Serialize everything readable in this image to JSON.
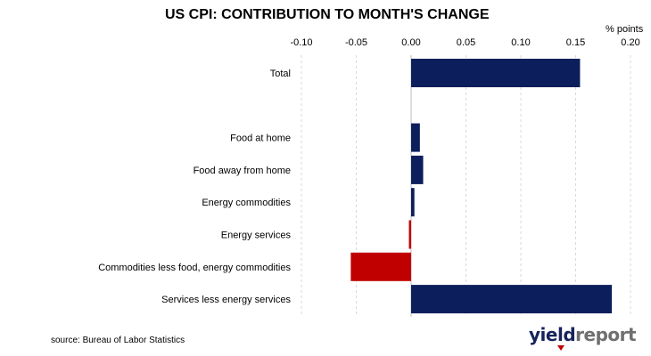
{
  "brand": {
    "part_a": "yield",
    "part_b": "report"
  },
  "colors": {
    "positive": "#0c1f5c",
    "negative": "#c00000",
    "gridline": "#d9d9d9",
    "axis": "#bfbfbf"
  },
  "chart_data": {
    "type": "bar",
    "orientation": "horizontal",
    "title": "US CPI: CONTRIBUTION TO MONTH'S CHANGE",
    "unit_label": "% points",
    "source": "source: Bureau of Labor Statistics",
    "xlim": [
      -0.1,
      0.2
    ],
    "x_ticks": [
      "-0.10",
      "-0.05",
      "0.00",
      "0.05",
      "0.10",
      "0.15",
      "0.20"
    ],
    "x_tick_values": [
      -0.1,
      -0.05,
      0.0,
      0.05,
      0.1,
      0.15,
      0.2
    ],
    "x_axis_position": "top",
    "grid": "vertical",
    "categories": [
      "Total",
      "",
      "Food at home",
      "Food away from home",
      "Energy commodities",
      "Energy services",
      "Commodities less food, energy commodities",
      "Services less energy services"
    ],
    "values": [
      0.154,
      null,
      0.008,
      0.011,
      0.003,
      -0.002,
      -0.055,
      0.183
    ]
  }
}
